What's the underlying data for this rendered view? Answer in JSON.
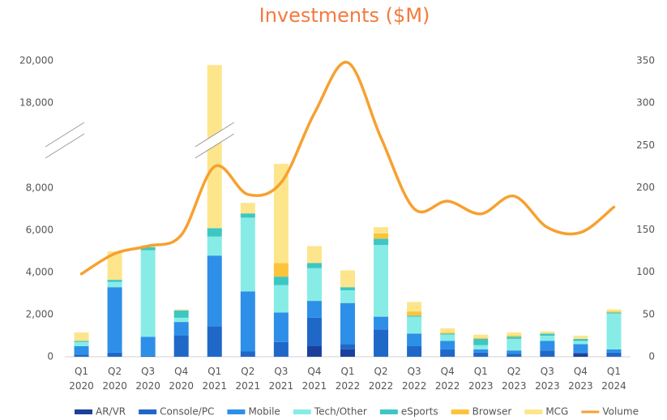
{
  "chart_data": {
    "type": "bar",
    "stacked": true,
    "title": "Investments ($M)",
    "categories": [
      "Q1 2020",
      "Q2 2020",
      "Q3 2020",
      "Q4 2020",
      "Q1 2021",
      "Q2 2021",
      "Q3 2021",
      "Q4 2021",
      "Q1 2022",
      "Q2 2022",
      "Q3 2022",
      "Q4 2022",
      "Q1 2023",
      "Q2 2023",
      "Q3 2023",
      "Q4 2023",
      "Q1 2024"
    ],
    "ylim": [
      0,
      20000
    ],
    "y_break": [
      9500,
      17000
    ],
    "yticks": [
      0,
      {
        "value": 2000,
        "label": "2,000"
      },
      {
        "value": 4000,
        "label": "4,000"
      },
      {
        "value": 6000,
        "label": "6,000"
      },
      {
        "value": 8000,
        "label": "8,000"
      },
      {
        "value": 18000,
        "label": "18,000"
      },
      {
        "value": 20000,
        "label": "20,000"
      }
    ],
    "y2lim": [
      0,
      350
    ],
    "y2ticks": [
      0,
      50,
      100,
      150,
      200,
      250,
      300,
      350
    ],
    "grid": false,
    "legend": "bottom",
    "series": [
      {
        "name": "AR/VR",
        "color": "#1d3f9c",
        "values": [
          0,
          0,
          0,
          0,
          0,
          0,
          0,
          500,
          350,
          0,
          0,
          0,
          0,
          0,
          0,
          150,
          0
        ]
      },
      {
        "name": "Console/PC",
        "color": "#1f68c8",
        "values": [
          100,
          200,
          50,
          1000,
          1450,
          250,
          700,
          1350,
          250,
          1300,
          500,
          350,
          200,
          150,
          300,
          50,
          200
        ]
      },
      {
        "name": "Mobile",
        "color": "#2e8fe8",
        "values": [
          400,
          3100,
          900,
          650,
          3350,
          2850,
          1400,
          800,
          1950,
          600,
          600,
          400,
          150,
          150,
          450,
          400,
          150
        ]
      },
      {
        "name": "Tech/Other",
        "color": "#88ece6",
        "values": [
          200,
          250,
          4100,
          200,
          900,
          3500,
          1300,
          1550,
          600,
          3400,
          800,
          300,
          200,
          550,
          250,
          150,
          1700
        ]
      },
      {
        "name": "eSports",
        "color": "#3ec6c3",
        "values": [
          50,
          100,
          150,
          350,
          400,
          200,
          400,
          250,
          150,
          300,
          50,
          50,
          300,
          100,
          100,
          100,
          50
        ]
      },
      {
        "name": "Browser",
        "color": "#fcc43a",
        "values": [
          0,
          0,
          0,
          0,
          0,
          0,
          650,
          0,
          0,
          250,
          200,
          50,
          50,
          50,
          0,
          0,
          50
        ]
      },
      {
        "name": "MCG",
        "color": "#fde58c",
        "values": [
          400,
          1350,
          100,
          50,
          13700,
          500,
          4700,
          800,
          800,
          300,
          450,
          200,
          150,
          150,
          100,
          150,
          100
        ]
      },
      {
        "name": "Volume",
        "type": "line",
        "axis": "y2",
        "color": "#f7a030",
        "values": [
          98,
          122,
          131,
          144,
          225,
          192,
          206,
          288,
          348,
          259,
          175,
          184,
          169,
          190,
          153,
          147,
          177
        ]
      }
    ]
  }
}
